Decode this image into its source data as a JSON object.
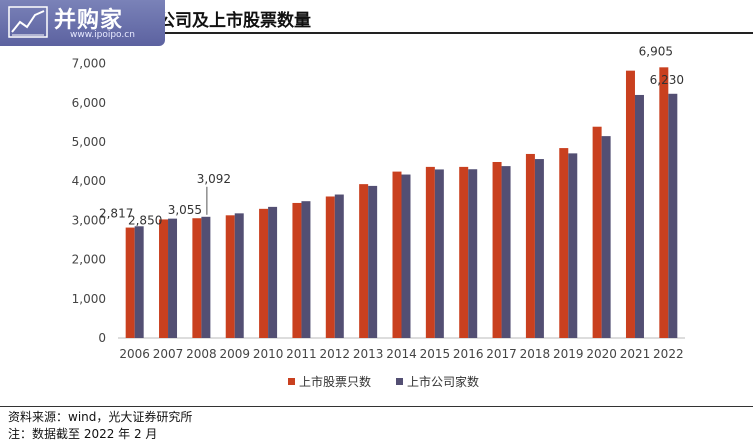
{
  "header": {
    "title": "公司及上市股票数量",
    "logo_text": "并购家",
    "logo_url": "www.ipoipo.cn"
  },
  "chart_data": {
    "type": "bar",
    "title": "公司及上市股票数量",
    "categories": [
      "2006",
      "2007",
      "2008",
      "2009",
      "2010",
      "2011",
      "2012",
      "2013",
      "2014",
      "2015",
      "2016",
      "2017",
      "2018",
      "2019",
      "2020",
      "2021",
      "2022"
    ],
    "series": [
      {
        "name": "上市股票只数",
        "color": "#c9401f",
        "values": [
          2817,
          3025,
          3055,
          3130,
          3295,
          3445,
          3610,
          3925,
          4245,
          4365,
          4365,
          4490,
          4695,
          4845,
          5390,
          6820,
          6905
        ]
      },
      {
        "name": "上市公司家数",
        "color": "#534f73",
        "values": [
          2850,
          3045,
          3092,
          3180,
          3345,
          3490,
          3660,
          3880,
          4170,
          4300,
          4305,
          4385,
          4565,
          4710,
          5150,
          6200,
          6230
        ]
      }
    ],
    "data_labels": [
      {
        "series": 0,
        "index": 0,
        "text": "2,817"
      },
      {
        "series": 1,
        "index": 0,
        "text": "2,850"
      },
      {
        "series": 0,
        "index": 2,
        "text": "3,055"
      },
      {
        "series": 1,
        "index": 2,
        "text": "3,092"
      },
      {
        "series": 0,
        "index": 16,
        "text": "6,905"
      },
      {
        "series": 1,
        "index": 16,
        "text": "6,230"
      }
    ],
    "y_ticks": [
      "0",
      "1,000",
      "2,000",
      "3,000",
      "4,000",
      "5,000",
      "6,000",
      "7,000"
    ],
    "ylim": [
      0,
      7500
    ],
    "grid": false,
    "legend_position": "bottom"
  },
  "footer": {
    "source": "资料来源：wind，光大证券研究所",
    "note": "注：数据截至 2022 年 2 月"
  }
}
